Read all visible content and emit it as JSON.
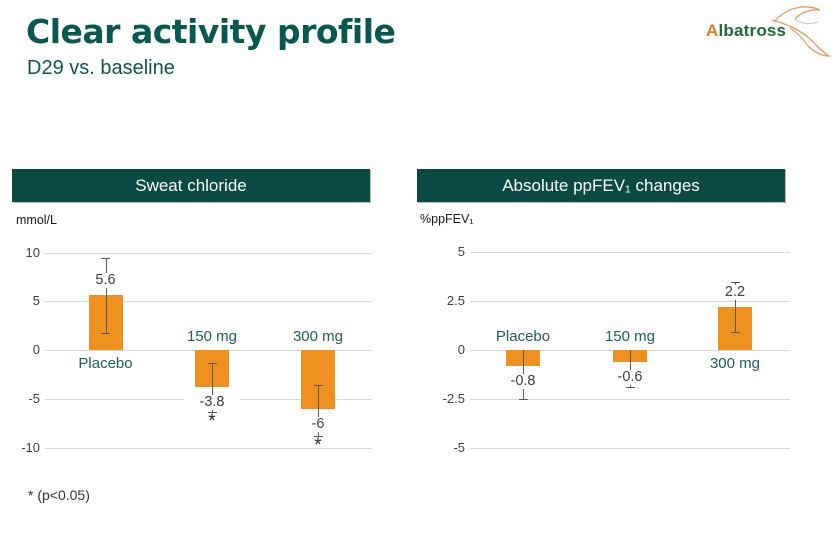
{
  "slide": {
    "title": "Clear activity profile",
    "subtitle": "D29 vs. baseline",
    "footnote": "* (p<0.05)"
  },
  "logo": {
    "brand_accent": "A",
    "brand_rest": "lbatross",
    "accent_color": "#E07D26",
    "text_color": "#1E6B3C"
  },
  "colors": {
    "title": "#07584E",
    "header_bg": "#0B4A42",
    "header_text": "#FFFFFF",
    "bar": "#EF911E",
    "gridline": "#D9D9D9",
    "error_bar": "#595959",
    "category_label": "#1D6057",
    "value_label": "#404040"
  },
  "chart_data": [
    {
      "id": "sweat-chloride",
      "type": "bar",
      "title": "Sweat chloride",
      "unit": "mmol/L",
      "categories": [
        "Placebo",
        "150 mg",
        "300 mg"
      ],
      "values": [
        5.6,
        -3.8,
        -6
      ],
      "value_labels": [
        "5.6",
        "-3.8",
        "-6"
      ],
      "error_low": [
        1.7,
        -6.4,
        -8.8
      ],
      "error_high": [
        9.4,
        -1.3,
        -3.6
      ],
      "cap_top": [
        true,
        true,
        true
      ],
      "cap_bottom": [
        true,
        true,
        true
      ],
      "significant": [
        false,
        true,
        true
      ],
      "yticks": [
        "10",
        "5",
        "0",
        "-5",
        "-10"
      ],
      "ylim": [
        -10,
        10
      ],
      "grid": true,
      "legend": false
    },
    {
      "id": "ppfev1",
      "type": "bar",
      "title": "Absolute ppFEV₁ changes",
      "unit": "%ppFEV₁",
      "categories": [
        "Placebo",
        "150 mg",
        "300 mg"
      ],
      "values": [
        -0.8,
        -0.6,
        2.2
      ],
      "value_labels": [
        "-0.8",
        "-0.6",
        "2.2"
      ],
      "error_low": [
        -2.5,
        -1.9,
        0.9
      ],
      "error_high": [
        0,
        0,
        3.45
      ],
      "cap_top": [
        false,
        false,
        true
      ],
      "cap_bottom": [
        true,
        true,
        true
      ],
      "significant": [
        false,
        false,
        false
      ],
      "yticks": [
        "5",
        "2.5",
        "0",
        "-2.5",
        "-5"
      ],
      "ylim": [
        -5,
        5
      ],
      "grid": true,
      "legend": false
    }
  ]
}
